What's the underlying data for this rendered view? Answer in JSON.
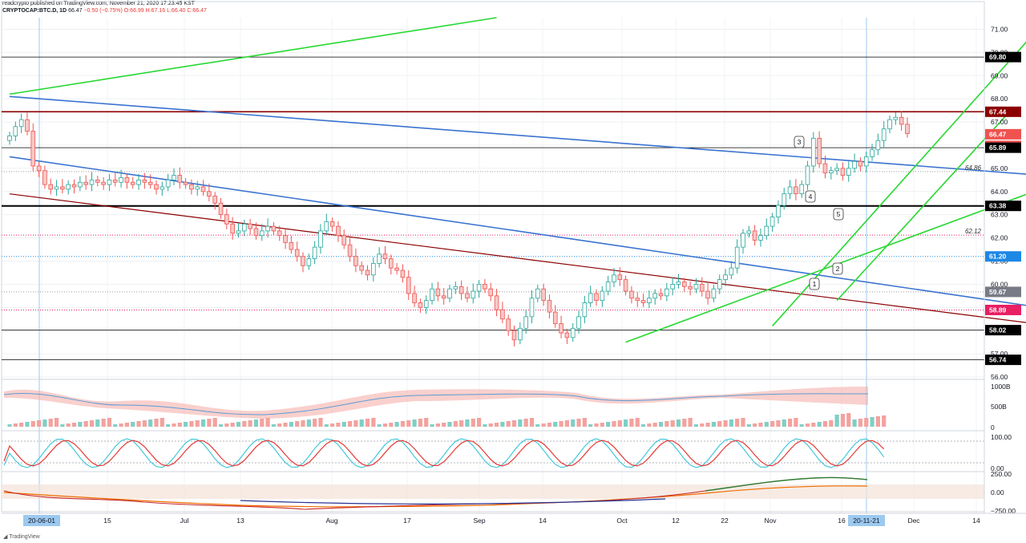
{
  "header": {
    "publisher": "readcrypto published on TradingView.com, November 21, 2020 17:23:45 KST",
    "symbol": "CRYPTOCAP:BTC.D, 1D",
    "last": "66.47",
    "change": "−0.50 (−0.75%)",
    "ohlc": "O:66.99 H:67.16 L:66.40 C:66.47"
  },
  "footer": {
    "brand": "TradingView"
  },
  "colors": {
    "up": "#26a69a",
    "down": "#ef5350",
    "green_line": "#27d831",
    "blue_line": "#3a73d0",
    "darkred_line": "#8b0000",
    "black_line": "#000000",
    "magenta": "#e91e63"
  },
  "chart_data": {
    "type": "candlestick",
    "title": "",
    "ylim": [
      56.0,
      71.5
    ],
    "y_ticks": [
      "71.00",
      "70.00",
      "69.00",
      "68.00",
      "67.00",
      "66.00",
      "65.00",
      "64.00",
      "63.00",
      "62.00",
      "61.00",
      "60.00",
      "59.00",
      "58.00",
      "57.00",
      "56.00"
    ],
    "x_ticks": [
      "20-06-01",
      "15",
      "Jul",
      "13",
      "Aug",
      "17",
      "Sep",
      "14",
      "Oct",
      "12",
      "22",
      "Nov",
      "16",
      "20-11-21",
      "Dec",
      "14"
    ],
    "price_tags": [
      {
        "label": "69.80",
        "value": 69.8,
        "color": "#000000"
      },
      {
        "label": "67.44",
        "value": 67.44,
        "color": "#8b0000"
      },
      {
        "label": "66.47",
        "value": 66.47,
        "color": "#ef5350"
      },
      {
        "label": "15:36:16",
        "value": 65.97,
        "color": "#ef5350"
      },
      {
        "label": "65.89",
        "value": 65.89,
        "color": "#000000"
      },
      {
        "label": "63.38",
        "value": 63.38,
        "color": "#000000"
      },
      {
        "label": "61.20",
        "value": 61.2,
        "color": "#1e88e5"
      },
      {
        "label": "59.67",
        "value": 59.67,
        "color": "#787b86"
      },
      {
        "label": "58.89",
        "value": 58.89,
        "color": "#e91e63"
      },
      {
        "label": "58.02",
        "value": 58.02,
        "color": "#000000"
      },
      {
        "label": "56.74",
        "value": 56.74,
        "color": "#000000"
      }
    ],
    "annotations": [
      {
        "label": "64.86",
        "value": 64.86
      },
      {
        "label": "62.12",
        "value": 62.12
      }
    ],
    "callouts": [
      "1",
      "2",
      "3",
      "4",
      "5"
    ],
    "horizontal_levels": [
      69.8,
      67.44,
      65.89,
      63.38,
      58.02,
      56.74
    ],
    "closes": [
      66.4,
      66.8,
      67.1,
      66.6,
      65.1,
      64.9,
      64.3,
      64.1,
      64.2,
      64.1,
      64.3,
      64.2,
      64.4,
      64.3,
      64.5,
      64.4,
      64.3,
      64.5,
      64.4,
      64.6,
      64.4,
      64.3,
      64.5,
      64.4,
      64.3,
      64.1,
      64.2,
      64.5,
      64.7,
      64.4,
      64.3,
      64.1,
      64.2,
      64.0,
      63.8,
      63.5,
      63.0,
      62.6,
      62.2,
      62.3,
      62.6,
      62.4,
      62.1,
      62.3,
      62.5,
      62.3,
      62.1,
      61.8,
      61.5,
      61.2,
      60.8,
      61.1,
      61.6,
      62.3,
      62.7,
      62.5,
      62.1,
      61.7,
      61.2,
      60.8,
      60.6,
      60.4,
      60.9,
      61.3,
      61.1,
      60.7,
      60.6,
      60.3,
      59.6,
      59.2,
      59.0,
      59.3,
      59.8,
      59.5,
      59.4,
      59.8,
      59.9,
      59.6,
      59.4,
      59.7,
      60.0,
      59.8,
      59.5,
      58.9,
      58.5,
      58.0,
      57.6,
      58.1,
      58.6,
      59.4,
      59.8,
      59.3,
      58.8,
      58.3,
      57.9,
      57.7,
      58.1,
      58.6,
      59.2,
      59.6,
      59.3,
      59.7,
      60.1,
      60.4,
      60.2,
      59.7,
      59.4,
      59.3,
      59.2,
      59.4,
      59.6,
      59.5,
      59.8,
      60.0,
      60.1,
      59.9,
      59.8,
      60.0,
      59.7,
      59.4,
      59.8,
      60.2,
      60.4,
      60.7,
      61.6,
      62.2,
      62.3,
      61.9,
      62.1,
      62.5,
      62.9,
      63.4,
      63.9,
      64.2,
      63.9,
      64.3,
      65.1,
      66.3,
      65.2,
      64.8,
      64.9,
      65.0,
      64.7,
      65.0,
      65.3,
      65.1,
      65.5,
      65.8,
      66.2,
      66.7,
      67.1,
      67.2,
      66.9,
      66.5
    ],
    "green_lines": [
      {
        "points": [
          [
            "2020-05-31",
            68.2
          ],
          [
            "2020-08-22",
            71.5
          ]
        ]
      },
      {
        "points": [
          [
            "2020-09-13",
            57.5
          ],
          [
            "2020-11-28",
            64.6
          ]
        ]
      },
      {
        "points": [
          [
            "2020-10-08",
            58.2
          ],
          [
            "2020-11-24",
            71.5
          ]
        ]
      },
      {
        "points": [
          [
            "2020-10-19",
            59.3
          ],
          [
            "2020-11-18",
            67.6
          ]
        ]
      }
    ],
    "blue_lines": [
      {
        "points": [
          [
            "2020-05-31",
            68.1
          ],
          [
            "2020-11-28",
            64.6
          ]
        ]
      },
      {
        "points": [
          [
            "2020-05-31",
            65.5
          ],
          [
            "2020-11-28",
            58.8
          ]
        ]
      }
    ],
    "darkred_lines": [
      {
        "points": [
          [
            "2020-05-31",
            63.9
          ],
          [
            "2020-11-28",
            58.1
          ]
        ]
      }
    ],
    "volume_axis": [
      "1000B",
      "500B",
      "0"
    ],
    "stoch_axis": [
      "100.00",
      "0.00"
    ],
    "bottom_axis": [
      "250.00",
      "0.00",
      "−250.00"
    ]
  }
}
